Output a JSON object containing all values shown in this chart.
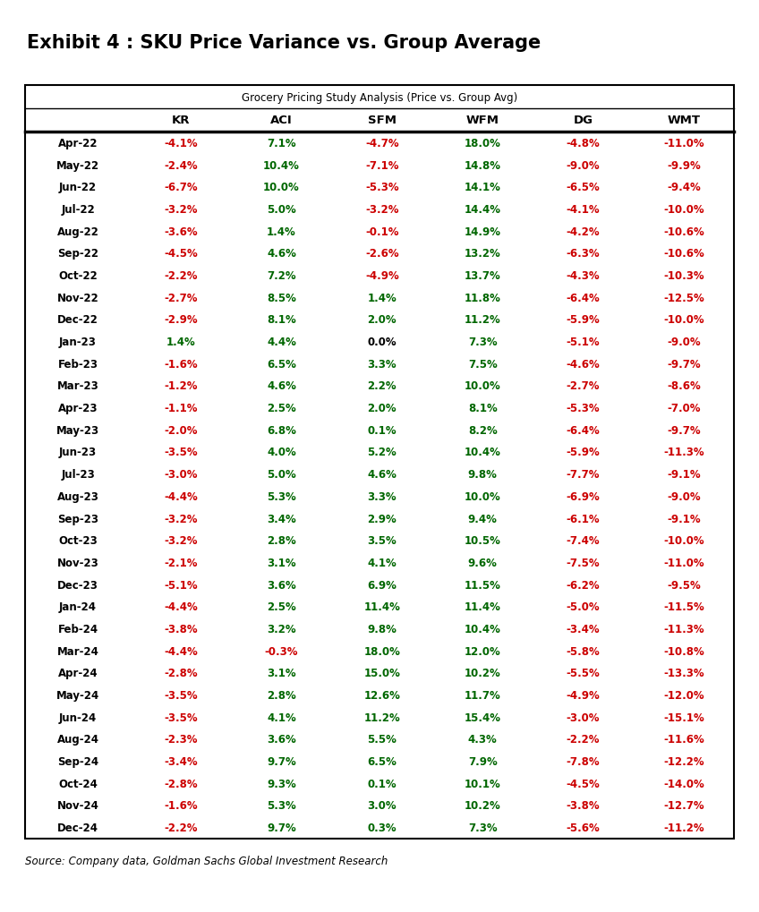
{
  "title": "Exhibit 4 : SKU Price Variance vs. Group Average",
  "subtitle": "Grocery Pricing Study Analysis (Price vs. Group Avg)",
  "source": "Source: Company data, Goldman Sachs Global Investment Research",
  "columns": [
    "",
    "KR",
    "ACI",
    "SFM",
    "WFM",
    "DG",
    "WMT"
  ],
  "rows": [
    [
      "Apr-22",
      "-4.1%",
      "7.1%",
      "-4.7%",
      "18.0%",
      "-4.8%",
      "-11.0%"
    ],
    [
      "May-22",
      "-2.4%",
      "10.4%",
      "-7.1%",
      "14.8%",
      "-9.0%",
      "-9.9%"
    ],
    [
      "Jun-22",
      "-6.7%",
      "10.0%",
      "-5.3%",
      "14.1%",
      "-6.5%",
      "-9.4%"
    ],
    [
      "Jul-22",
      "-3.2%",
      "5.0%",
      "-3.2%",
      "14.4%",
      "-4.1%",
      "-10.0%"
    ],
    [
      "Aug-22",
      "-3.6%",
      "1.4%",
      "-0.1%",
      "14.9%",
      "-4.2%",
      "-10.6%"
    ],
    [
      "Sep-22",
      "-4.5%",
      "4.6%",
      "-2.6%",
      "13.2%",
      "-6.3%",
      "-10.6%"
    ],
    [
      "Oct-22",
      "-2.2%",
      "7.2%",
      "-4.9%",
      "13.7%",
      "-4.3%",
      "-10.3%"
    ],
    [
      "Nov-22",
      "-2.7%",
      "8.5%",
      "1.4%",
      "11.8%",
      "-6.4%",
      "-12.5%"
    ],
    [
      "Dec-22",
      "-2.9%",
      "8.1%",
      "2.0%",
      "11.2%",
      "-5.9%",
      "-10.0%"
    ],
    [
      "Jan-23",
      "1.4%",
      "4.4%",
      "0.0%",
      "7.3%",
      "-5.1%",
      "-9.0%"
    ],
    [
      "Feb-23",
      "-1.6%",
      "6.5%",
      "3.3%",
      "7.5%",
      "-4.6%",
      "-9.7%"
    ],
    [
      "Mar-23",
      "-1.2%",
      "4.6%",
      "2.2%",
      "10.0%",
      "-2.7%",
      "-8.6%"
    ],
    [
      "Apr-23",
      "-1.1%",
      "2.5%",
      "2.0%",
      "8.1%",
      "-5.3%",
      "-7.0%"
    ],
    [
      "May-23",
      "-2.0%",
      "6.8%",
      "0.1%",
      "8.2%",
      "-6.4%",
      "-9.7%"
    ],
    [
      "Jun-23",
      "-3.5%",
      "4.0%",
      "5.2%",
      "10.4%",
      "-5.9%",
      "-11.3%"
    ],
    [
      "Jul-23",
      "-3.0%",
      "5.0%",
      "4.6%",
      "9.8%",
      "-7.7%",
      "-9.1%"
    ],
    [
      "Aug-23",
      "-4.4%",
      "5.3%",
      "3.3%",
      "10.0%",
      "-6.9%",
      "-9.0%"
    ],
    [
      "Sep-23",
      "-3.2%",
      "3.4%",
      "2.9%",
      "9.4%",
      "-6.1%",
      "-9.1%"
    ],
    [
      "Oct-23",
      "-3.2%",
      "2.8%",
      "3.5%",
      "10.5%",
      "-7.4%",
      "-10.0%"
    ],
    [
      "Nov-23",
      "-2.1%",
      "3.1%",
      "4.1%",
      "9.6%",
      "-7.5%",
      "-11.0%"
    ],
    [
      "Dec-23",
      "-5.1%",
      "3.6%",
      "6.9%",
      "11.5%",
      "-6.2%",
      "-9.5%"
    ],
    [
      "Jan-24",
      "-4.4%",
      "2.5%",
      "11.4%",
      "11.4%",
      "-5.0%",
      "-11.5%"
    ],
    [
      "Feb-24",
      "-3.8%",
      "3.2%",
      "9.8%",
      "10.4%",
      "-3.4%",
      "-11.3%"
    ],
    [
      "Mar-24",
      "-4.4%",
      "-0.3%",
      "18.0%",
      "12.0%",
      "-5.8%",
      "-10.8%"
    ],
    [
      "Apr-24",
      "-2.8%",
      "3.1%",
      "15.0%",
      "10.2%",
      "-5.5%",
      "-13.3%"
    ],
    [
      "May-24",
      "-3.5%",
      "2.8%",
      "12.6%",
      "11.7%",
      "-4.9%",
      "-12.0%"
    ],
    [
      "Jun-24",
      "-3.5%",
      "4.1%",
      "11.2%",
      "15.4%",
      "-3.0%",
      "-15.1%"
    ],
    [
      "Aug-24",
      "-2.3%",
      "3.6%",
      "5.5%",
      "4.3%",
      "-2.2%",
      "-11.6%"
    ],
    [
      "Sep-24",
      "-3.4%",
      "9.7%",
      "6.5%",
      "7.9%",
      "-7.8%",
      "-12.2%"
    ],
    [
      "Oct-24",
      "-2.8%",
      "9.3%",
      "0.1%",
      "10.1%",
      "-4.5%",
      "-14.0%"
    ],
    [
      "Nov-24",
      "-1.6%",
      "5.3%",
      "3.0%",
      "10.2%",
      "-3.8%",
      "-12.7%"
    ],
    [
      "Dec-24",
      "-2.2%",
      "9.7%",
      "0.3%",
      "7.3%",
      "-5.6%",
      "-11.2%"
    ]
  ],
  "bg_color": "#ffffff",
  "title_color": "#000000",
  "header_color": "#000000",
  "pos_color": "#006600",
  "neg_color": "#cc0000",
  "zero_color": "#000000",
  "border_color": "#000000",
  "source_color": "#000000",
  "title_fontsize": 15,
  "subtitle_fontsize": 8.5,
  "col_header_fontsize": 9.5,
  "data_fontsize": 8.5,
  "source_fontsize": 8.5
}
